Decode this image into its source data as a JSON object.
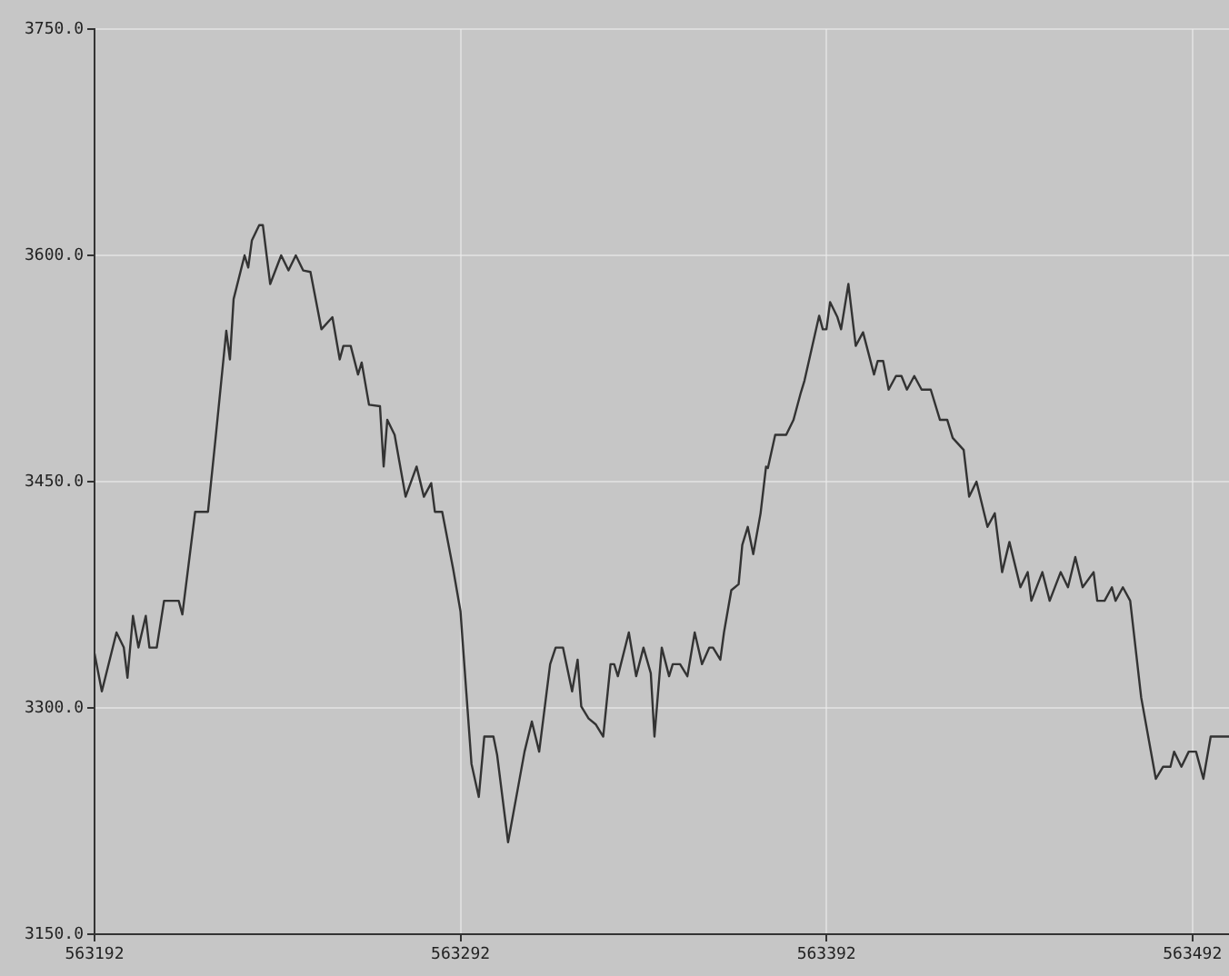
{
  "chart_data": {
    "type": "line",
    "x": [
      563192,
      563194,
      563198,
      563200,
      563201,
      563202.5,
      563204,
      563206,
      563207,
      563209,
      563211,
      563215,
      563216,
      563219.5,
      563223,
      563225,
      563228,
      563229,
      563230,
      563233,
      563234,
      563235,
      563237,
      563238,
      563240,
      563243,
      563245,
      563247,
      563249,
      563251,
      563254,
      563257,
      563259,
      563260,
      563262,
      563264,
      563265,
      563267,
      563270,
      563271,
      563272,
      563274,
      563277,
      563280,
      563282,
      563284,
      563285,
      563287,
      563290,
      563292,
      563295,
      563297,
      563298.5,
      563301,
      563302,
      563305,
      563308,
      563309.5,
      563311.5,
      563313.5,
      563316.5,
      563318,
      563320,
      563322.5,
      563324,
      563325,
      563327,
      563329,
      563331,
      563333,
      563334,
      563335,
      563338,
      563340,
      563342,
      563344,
      563345,
      563347,
      563349,
      563350,
      563352,
      563354,
      563356,
      563358,
      563360,
      563361,
      563363,
      563364,
      563366,
      563368,
      563369,
      563370.5,
      563372,
      563374,
      563375.5,
      563376,
      563378,
      563381,
      563383,
      563385,
      563386,
      563390,
      563391,
      563392,
      563393,
      563395,
      563396,
      563398,
      563400,
      563402,
      563405,
      563406,
      563407.5,
      563409,
      563411,
      563412.5,
      563414,
      563416,
      563418,
      563420.5,
      563423,
      563425,
      563426.5,
      563429.5,
      563431,
      563433,
      563436,
      563438,
      563440,
      563442,
      563444,
      563445,
      563447,
      563448,
      563451,
      563453,
      563456,
      563458,
      563460,
      563462,
      563465,
      563466,
      563468,
      563470,
      563471,
      563473,
      563475,
      563478,
      563482,
      563484,
      563486,
      563487,
      563489,
      563491,
      563493,
      563495,
      563497,
      563502
    ],
    "series": [
      {
        "color": "#333333",
        "values": [
          3336,
          3311,
          3350,
          3340,
          3320,
          3361,
          3340,
          3361,
          3340,
          3340,
          3371,
          3371,
          3362,
          3430,
          3430,
          3477,
          3550,
          3531,
          3571,
          3600,
          3592,
          3610,
          3620,
          3620,
          3581,
          3600,
          3590,
          3600,
          3590,
          3589,
          3551,
          3559,
          3531,
          3540,
          3540,
          3521,
          3529,
          3501,
          3500,
          3460,
          3491,
          3481,
          3440,
          3460,
          3440,
          3449,
          3430,
          3430,
          3392,
          3364,
          3263,
          3241,
          3281,
          3281,
          3269,
          3211,
          3251,
          3271,
          3291,
          3271,
          3329,
          3340,
          3340,
          3311,
          3332,
          3301,
          3293,
          3289,
          3281,
          3329,
          3329,
          3321,
          3350,
          3321,
          3340,
          3323,
          3281,
          3340,
          3321,
          3329,
          3329,
          3321,
          3350,
          3329,
          3340,
          3340,
          3332,
          3350,
          3378,
          3382,
          3408,
          3420,
          3402,
          3429,
          3460,
          3459,
          3481,
          3481,
          3491,
          3509,
          3517,
          3560,
          3551,
          3551,
          3569,
          3559,
          3551,
          3581,
          3540,
          3549,
          3521,
          3530,
          3530,
          3511,
          3520,
          3520,
          3511,
          3520,
          3511,
          3511,
          3491,
          3491,
          3479,
          3471,
          3440,
          3450,
          3420,
          3429,
          3390,
          3410,
          3390,
          3380,
          3390,
          3371,
          3390,
          3371,
          3390,
          3380,
          3400,
          3380,
          3390,
          3371,
          3371,
          3380,
          3371,
          3380,
          3371,
          3307,
          3253,
          3261,
          3261,
          3271,
          3261,
          3271,
          3271,
          3253,
          3281,
          3281
        ]
      }
    ],
    "xlim": [
      563192,
      563502
    ],
    "ylim": [
      3150,
      3750
    ],
    "xticks": [
      563192,
      563292,
      563392,
      563492
    ],
    "yticks": [
      {
        "value": 3150,
        "label": "3150.0"
      },
      {
        "value": 3300,
        "label": "3300.0"
      },
      {
        "value": 3450,
        "label": "3450.0"
      },
      {
        "value": 3600,
        "label": "3600.0"
      },
      {
        "value": 3750,
        "label": "3750.0"
      }
    ],
    "grid": true,
    "legend": false,
    "marker": "none",
    "line_style": "solid"
  }
}
